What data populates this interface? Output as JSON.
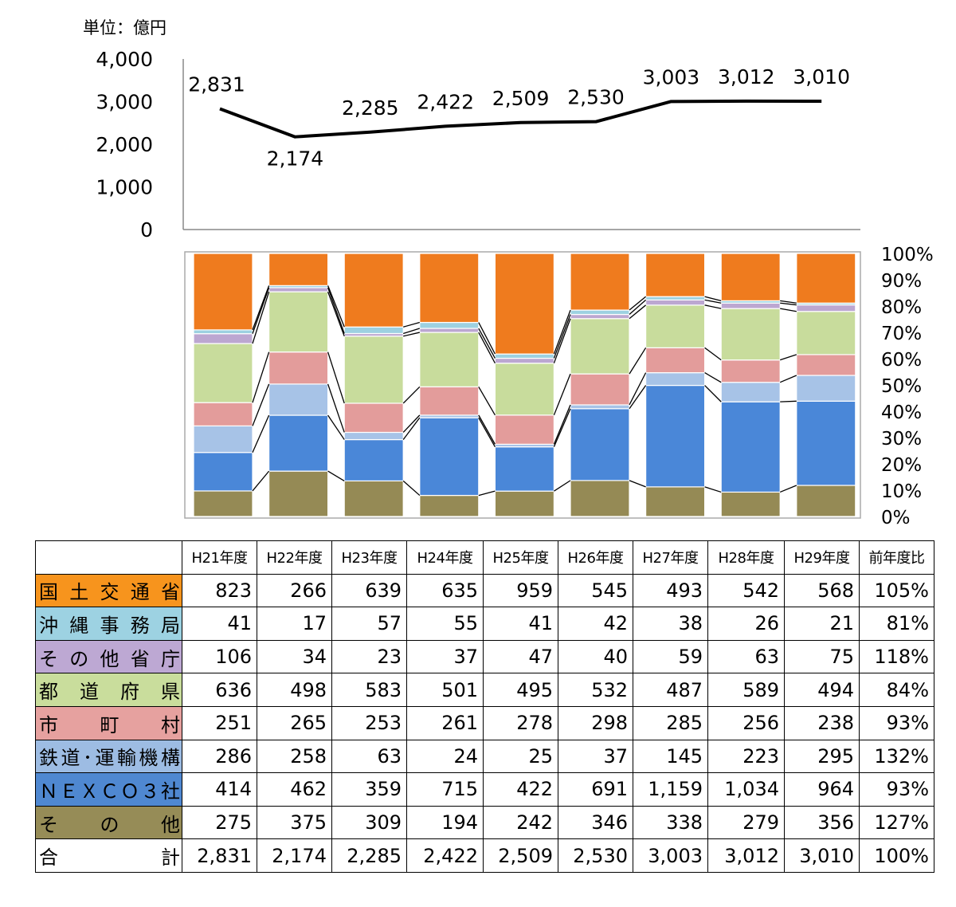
{
  "chart_data": [
    {
      "type": "line",
      "unit_label": "単位：億円",
      "x": [
        "H21年度",
        "H22年度",
        "H23年度",
        "H24年度",
        "H25年度",
        "H26年度",
        "H27年度",
        "H28年度",
        "H29年度"
      ],
      "values": [
        2831,
        2174,
        2285,
        2422,
        2509,
        2530,
        3003,
        3012,
        3010
      ],
      "data_labels": [
        "2,831",
        "2,174",
        "2,285",
        "2,422",
        "2,509",
        "2,530",
        "3,003",
        "3,012",
        "3,010"
      ],
      "y_ticks": [
        "0",
        "1,000",
        "2,000",
        "3,000",
        "4,000"
      ],
      "ylim": [
        0,
        4000
      ],
      "color": "#000000",
      "grid": false
    },
    {
      "type": "bar",
      "stacked": "percent",
      "categories": [
        "H21年度",
        "H22年度",
        "H23年度",
        "H24年度",
        "H25年度",
        "H26年度",
        "H27年度",
        "H28年度",
        "H29年度"
      ],
      "series": [
        {
          "name": "その他",
          "color": "#958A55",
          "values": [
            275,
            375,
            309,
            194,
            242,
            346,
            338,
            279,
            356
          ]
        },
        {
          "name": "NEXCO3社",
          "color": "#4A87D8",
          "values": [
            414,
            462,
            359,
            715,
            422,
            691,
            1159,
            1034,
            964
          ]
        },
        {
          "name": "鉄道・運輸機構",
          "color": "#A7C3E7",
          "values": [
            286,
            258,
            63,
            24,
            25,
            37,
            145,
            223,
            295
          ]
        },
        {
          "name": "市町村",
          "color": "#E39C9B",
          "values": [
            251,
            265,
            253,
            261,
            278,
            298,
            285,
            256,
            238
          ]
        },
        {
          "name": "都道府県",
          "color": "#C8DC9C",
          "values": [
            636,
            498,
            583,
            501,
            495,
            532,
            487,
            589,
            494
          ]
        },
        {
          "name": "その他省庁",
          "color": "#BCA7D1",
          "values": [
            106,
            34,
            23,
            37,
            47,
            40,
            59,
            63,
            75
          ]
        },
        {
          "name": "沖縄事務局",
          "color": "#9DD1E1",
          "values": [
            41,
            17,
            57,
            55,
            41,
            42,
            38,
            26,
            21
          ]
        },
        {
          "name": "国土交通省",
          "color": "#EF7B1E",
          "values": [
            823,
            266,
            639,
            635,
            959,
            545,
            493,
            542,
            568
          ]
        }
      ],
      "y_ticks": [
        "0%",
        "10%",
        "20%",
        "30%",
        "40%",
        "50%",
        "60%",
        "70%",
        "80%",
        "90%",
        "100%"
      ],
      "ylim": [
        0,
        100
      ]
    }
  ],
  "table": {
    "headers": [
      "",
      "H21年度",
      "H22年度",
      "H23年度",
      "H24年度",
      "H25年度",
      "H26年度",
      "H27年度",
      "H28年度",
      "H29年度",
      "前年度比"
    ],
    "rows": [
      {
        "label": "国土交通省",
        "color": "#F7941D",
        "cells": [
          "823",
          "266",
          "639",
          "635",
          "959",
          "545",
          "493",
          "542",
          "568",
          "105%"
        ]
      },
      {
        "label": "沖縄事務局",
        "color": "#9DD2E2",
        "cells": [
          "41",
          "17",
          "57",
          "55",
          "41",
          "42",
          "38",
          "26",
          "21",
          "81%"
        ]
      },
      {
        "label": "その他省庁",
        "color": "#BDA8D3",
        "cells": [
          "106",
          "34",
          "23",
          "37",
          "47",
          "40",
          "59",
          "63",
          "75",
          "118%"
        ]
      },
      {
        "label": "都道府県",
        "color": "#C9DD9C",
        "cells": [
          "636",
          "498",
          "583",
          "501",
          "495",
          "532",
          "487",
          "589",
          "494",
          "84%"
        ]
      },
      {
        "label": "市町村",
        "color": "#E6A19F",
        "cells": [
          "251",
          "265",
          "253",
          "261",
          "278",
          "298",
          "285",
          "256",
          "238",
          "93%"
        ]
      },
      {
        "label": "鉄道･運輸機構",
        "color": "#9DBCE3",
        "cells": [
          "286",
          "258",
          "63",
          "24",
          "25",
          "37",
          "145",
          "223",
          "295",
          "132%"
        ]
      },
      {
        "label": "ＮＥＸＣＯ３社",
        "color": "#4F88D1",
        "cells": [
          "414",
          "462",
          "359",
          "715",
          "422",
          "691",
          "1,159",
          "1,034",
          "964",
          "93%"
        ]
      },
      {
        "label": "その他",
        "color": "#968C57",
        "cells": [
          "275",
          "375",
          "309",
          "194",
          "242",
          "346",
          "338",
          "279",
          "356",
          "127%"
        ]
      },
      {
        "label": "合計",
        "color": "#FFFFFF",
        "cells": [
          "2,831",
          "2,174",
          "2,285",
          "2,422",
          "2,509",
          "2,530",
          "3,003",
          "3,012",
          "3,010",
          "100%"
        ]
      }
    ]
  }
}
